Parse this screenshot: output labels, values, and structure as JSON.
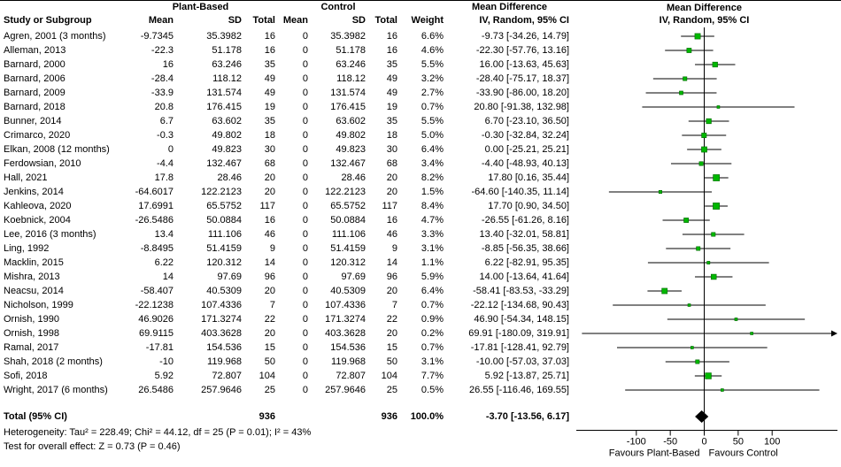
{
  "header": {
    "group_plant": "Plant-Based",
    "group_control": "Control",
    "study_col": "Study or Subgroup",
    "mean": "Mean",
    "sd": "SD",
    "total": "Total",
    "weight": "Weight",
    "md_title": "Mean Difference",
    "md_subtitle": "IV, Random, 95% CI"
  },
  "footer": {
    "heterogeneity": "Heterogeneity: Tau² = 228.49; Chi² = 44.12, df = 25 (P = 0.01); I² = 43%",
    "overall_effect": "Test for overall effect: Z = 0.73 (P = 0.46)"
  },
  "colors": {
    "square_fill": "#00b800",
    "square_stroke": "#006600",
    "line": "#000000",
    "diamond": "#000000"
  },
  "chart_data": {
    "type": "forest",
    "title": "Mean Difference  IV, Random, 95% CI",
    "axis": {
      "ticks": [
        -100,
        -50,
        0,
        50,
        100
      ],
      "xmin": -188,
      "xmax": 196,
      "label_left": "Favours Plant-Based",
      "label_right": "Favours Control"
    },
    "studies": [
      {
        "name": "Agren, 2001 (3 months)",
        "mean_pb": "-9.7345",
        "sd_pb": "35.3982",
        "total_pb": "16",
        "mean_c": "0",
        "sd_c": "35.3982",
        "total_c": "16",
        "weight": "6.6%",
        "ci": "-9.73 [-34.26, 14.79]",
        "md": -9.73,
        "lo": -34.26,
        "hi": 14.79
      },
      {
        "name": "Alleman, 2013",
        "mean_pb": "-22.3",
        "sd_pb": "51.178",
        "total_pb": "16",
        "mean_c": "0",
        "sd_c": "51.178",
        "total_c": "16",
        "weight": "4.6%",
        "ci": "-22.30 [-57.76, 13.16]",
        "md": -22.3,
        "lo": -57.76,
        "hi": 13.16
      },
      {
        "name": "Barnard, 2000",
        "mean_pb": "16",
        "sd_pb": "63.246",
        "total_pb": "35",
        "mean_c": "0",
        "sd_c": "63.246",
        "total_c": "35",
        "weight": "5.5%",
        "ci": "16.00 [-13.63, 45.63]",
        "md": 16.0,
        "lo": -13.63,
        "hi": 45.63
      },
      {
        "name": "Barnard, 2006",
        "mean_pb": "-28.4",
        "sd_pb": "118.12",
        "total_pb": "49",
        "mean_c": "0",
        "sd_c": "118.12",
        "total_c": "49",
        "weight": "3.2%",
        "ci": "-28.40 [-75.17, 18.37]",
        "md": -28.4,
        "lo": -75.17,
        "hi": 18.37
      },
      {
        "name": "Barnard, 2009",
        "mean_pb": "-33.9",
        "sd_pb": "131.574",
        "total_pb": "49",
        "mean_c": "0",
        "sd_c": "131.574",
        "total_c": "49",
        "weight": "2.7%",
        "ci": "-33.90 [-86.00, 18.20]",
        "md": -33.9,
        "lo": -86.0,
        "hi": 18.2
      },
      {
        "name": "Barnard, 2018",
        "mean_pb": "20.8",
        "sd_pb": "176.415",
        "total_pb": "19",
        "mean_c": "0",
        "sd_c": "176.415",
        "total_c": "19",
        "weight": "0.7%",
        "ci": "20.80 [-91.38, 132.98]",
        "md": 20.8,
        "lo": -91.38,
        "hi": 132.98
      },
      {
        "name": "Bunner, 2014",
        "mean_pb": "6.7",
        "sd_pb": "63.602",
        "total_pb": "35",
        "mean_c": "0",
        "sd_c": "63.602",
        "total_c": "35",
        "weight": "5.5%",
        "ci": "6.70 [-23.10, 36.50]",
        "md": 6.7,
        "lo": -23.1,
        "hi": 36.5
      },
      {
        "name": "Crimarco, 2020",
        "mean_pb": "-0.3",
        "sd_pb": "49.802",
        "total_pb": "18",
        "mean_c": "0",
        "sd_c": "49.802",
        "total_c": "18",
        "weight": "5.0%",
        "ci": "-0.30 [-32.84, 32.24]",
        "md": -0.3,
        "lo": -32.84,
        "hi": 32.24
      },
      {
        "name": "Elkan, 2008 (12 months)",
        "mean_pb": "0",
        "sd_pb": "49.823",
        "total_pb": "30",
        "mean_c": "0",
        "sd_c": "49.823",
        "total_c": "30",
        "weight": "6.4%",
        "ci": "0.00 [-25.21, 25.21]",
        "md": 0.0,
        "lo": -25.21,
        "hi": 25.21
      },
      {
        "name": "Ferdowsian, 2010",
        "mean_pb": "-4.4",
        "sd_pb": "132.467",
        "total_pb": "68",
        "mean_c": "0",
        "sd_c": "132.467",
        "total_c": "68",
        "weight": "3.4%",
        "ci": "-4.40 [-48.93, 40.13]",
        "md": -4.4,
        "lo": -48.93,
        "hi": 40.13
      },
      {
        "name": "Hall, 2021",
        "mean_pb": "17.8",
        "sd_pb": "28.46",
        "total_pb": "20",
        "mean_c": "0",
        "sd_c": "28.46",
        "total_c": "20",
        "weight": "8.2%",
        "ci": "17.80 [0.16, 35.44]",
        "md": 17.8,
        "lo": 0.16,
        "hi": 35.44
      },
      {
        "name": "Jenkins, 2014",
        "mean_pb": "-64.6017",
        "sd_pb": "122.2123",
        "total_pb": "20",
        "mean_c": "0",
        "sd_c": "122.2123",
        "total_c": "20",
        "weight": "1.5%",
        "ci": "-64.60 [-140.35, 11.14]",
        "md": -64.6,
        "lo": -140.35,
        "hi": 11.14
      },
      {
        "name": "Kahleova, 2020",
        "mean_pb": "17.6991",
        "sd_pb": "65.5752",
        "total_pb": "117",
        "mean_c": "0",
        "sd_c": "65.5752",
        "total_c": "117",
        "weight": "8.4%",
        "ci": "17.70 [0.90, 34.50]",
        "md": 17.7,
        "lo": 0.9,
        "hi": 34.5
      },
      {
        "name": "Koebnick, 2004",
        "mean_pb": "-26.5486",
        "sd_pb": "50.0884",
        "total_pb": "16",
        "mean_c": "0",
        "sd_c": "50.0884",
        "total_c": "16",
        "weight": "4.7%",
        "ci": "-26.55 [-61.26, 8.16]",
        "md": -26.55,
        "lo": -61.26,
        "hi": 8.16
      },
      {
        "name": "Lee, 2016 (3 months)",
        "mean_pb": "13.4",
        "sd_pb": "111.106",
        "total_pb": "46",
        "mean_c": "0",
        "sd_c": "111.106",
        "total_c": "46",
        "weight": "3.3%",
        "ci": "13.40 [-32.01, 58.81]",
        "md": 13.4,
        "lo": -32.01,
        "hi": 58.81
      },
      {
        "name": "Ling, 1992",
        "mean_pb": "-8.8495",
        "sd_pb": "51.4159",
        "total_pb": "9",
        "mean_c": "0",
        "sd_c": "51.4159",
        "total_c": "9",
        "weight": "3.1%",
        "ci": "-8.85 [-56.35, 38.66]",
        "md": -8.85,
        "lo": -56.35,
        "hi": 38.66
      },
      {
        "name": "Macklin, 2015",
        "mean_pb": "6.22",
        "sd_pb": "120.312",
        "total_pb": "14",
        "mean_c": "0",
        "sd_c": "120.312",
        "total_c": "14",
        "weight": "1.1%",
        "ci": "6.22 [-82.91, 95.35]",
        "md": 6.22,
        "lo": -82.91,
        "hi": 95.35
      },
      {
        "name": "Mishra, 2013",
        "mean_pb": "14",
        "sd_pb": "97.69",
        "total_pb": "96",
        "mean_c": "0",
        "sd_c": "97.69",
        "total_c": "96",
        "weight": "5.9%",
        "ci": "14.00 [-13.64, 41.64]",
        "md": 14.0,
        "lo": -13.64,
        "hi": 41.64
      },
      {
        "name": "Neacsu, 2014",
        "mean_pb": "-58.407",
        "sd_pb": "40.5309",
        "total_pb": "20",
        "mean_c": "0",
        "sd_c": "40.5309",
        "total_c": "20",
        "weight": "6.4%",
        "ci": "-58.41 [-83.53, -33.29]",
        "md": -58.41,
        "lo": -83.53,
        "hi": -33.29
      },
      {
        "name": "Nicholson, 1999",
        "mean_pb": "-22.1238",
        "sd_pb": "107.4336",
        "total_pb": "7",
        "mean_c": "0",
        "sd_c": "107.4336",
        "total_c": "7",
        "weight": "0.7%",
        "ci": "-22.12 [-134.68, 90.43]",
        "md": -22.12,
        "lo": -134.68,
        "hi": 90.43
      },
      {
        "name": "Ornish, 1990",
        "mean_pb": "46.9026",
        "sd_pb": "171.3274",
        "total_pb": "22",
        "mean_c": "0",
        "sd_c": "171.3274",
        "total_c": "22",
        "weight": "0.9%",
        "ci": "46.90 [-54.34, 148.15]",
        "md": 46.9,
        "lo": -54.34,
        "hi": 148.15
      },
      {
        "name": "Ornish, 1998",
        "mean_pb": "69.9115",
        "sd_pb": "403.3628",
        "total_pb": "20",
        "mean_c": "0",
        "sd_c": "403.3628",
        "total_c": "20",
        "weight": "0.2%",
        "ci": "69.91 [-180.09, 319.91]",
        "md": 69.91,
        "lo": -180.09,
        "hi": 319.91
      },
      {
        "name": "Ramal, 2017",
        "mean_pb": "-17.81",
        "sd_pb": "154.536",
        "total_pb": "15",
        "mean_c": "0",
        "sd_c": "154.536",
        "total_c": "15",
        "weight": "0.7%",
        "ci": "-17.81 [-128.41, 92.79]",
        "md": -17.81,
        "lo": -128.41,
        "hi": 92.79
      },
      {
        "name": "Shah, 2018 (2 months)",
        "mean_pb": "-10",
        "sd_pb": "119.968",
        "total_pb": "50",
        "mean_c": "0",
        "sd_c": "119.968",
        "total_c": "50",
        "weight": "3.1%",
        "ci": "-10.00 [-57.03, 37.03]",
        "md": -10.0,
        "lo": -57.03,
        "hi": 37.03
      },
      {
        "name": "Sofi, 2018",
        "mean_pb": "5.92",
        "sd_pb": "72.807",
        "total_pb": "104",
        "mean_c": "0",
        "sd_c": "72.807",
        "total_c": "104",
        "weight": "7.7%",
        "ci": "5.92 [-13.87, 25.71]",
        "md": 5.92,
        "lo": -13.87,
        "hi": 25.71
      },
      {
        "name": "Wright, 2017 (6 months)",
        "mean_pb": "26.5486",
        "sd_pb": "257.9646",
        "total_pb": "25",
        "mean_c": "0",
        "sd_c": "257.9646",
        "total_c": "25",
        "weight": "0.5%",
        "ci": "26.55 [-116.46, 169.55]",
        "md": 26.55,
        "lo": -116.46,
        "hi": 169.55
      }
    ],
    "total": {
      "label": "Total (95% CI)",
      "total_pb": "936",
      "total_c": "936",
      "weight": "100.0%",
      "ci": "-3.70 [-13.56, 6.17]",
      "md": -3.7,
      "lo": -13.56,
      "hi": 6.17
    }
  }
}
